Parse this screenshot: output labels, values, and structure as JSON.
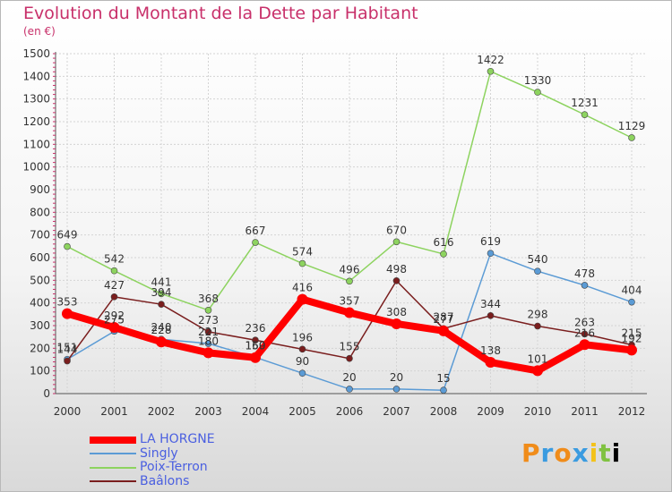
{
  "title": "Evolution du Montant de la Dette par Habitant",
  "subtitle": "(en €)",
  "chart_data": {
    "type": "line",
    "title": "Evolution du Montant de la Dette par Habitant",
    "ylabel": "(en €)",
    "x": [
      "2000",
      "2001",
      "2002",
      "2003",
      "2004",
      "2005",
      "2006",
      "2007",
      "2008",
      "2009",
      "2010",
      "2011",
      "2012"
    ],
    "ylim": [
      0,
      1500
    ],
    "yticks": [
      0,
      100,
      200,
      300,
      400,
      500,
      600,
      700,
      800,
      900,
      1000,
      1100,
      1200,
      1300,
      1400,
      1500
    ],
    "grid": true,
    "legend_position": "bottom-left",
    "series": [
      {
        "name": "LA HORGNE",
        "color": "#ff0000",
        "values": [
          353,
          292,
          228,
          180,
          159,
          416,
          357,
          308,
          277,
          138,
          101,
          216,
          192
        ]
      },
      {
        "name": "Singly",
        "color": "#5b9bd5",
        "values": [
          151,
          275,
          240,
          221,
          160,
          90,
          20,
          20,
          15,
          619,
          540,
          478,
          404
        ]
      },
      {
        "name": "Poix-Terron",
        "color": "#8dd35f",
        "values": [
          649,
          542,
          441,
          368,
          667,
          574,
          496,
          670,
          616,
          1422,
          1330,
          1231,
          1129
        ]
      },
      {
        "name": "Baâlons",
        "color": "#7a1e1e",
        "values": [
          144,
          427,
          394,
          273,
          236,
          196,
          155,
          498,
          287,
          344,
          298,
          263,
          215
        ]
      }
    ]
  },
  "legend": [
    {
      "label": "LA HORGNE",
      "color": "#ff0000"
    },
    {
      "label": "Singly",
      "color": "#5b9bd5"
    },
    {
      "label": "Poix-Terron",
      "color": "#8dd35f"
    },
    {
      "label": "Baâlons",
      "color": "#7a1e1e"
    }
  ],
  "logo": {
    "text": "Proxiti"
  }
}
